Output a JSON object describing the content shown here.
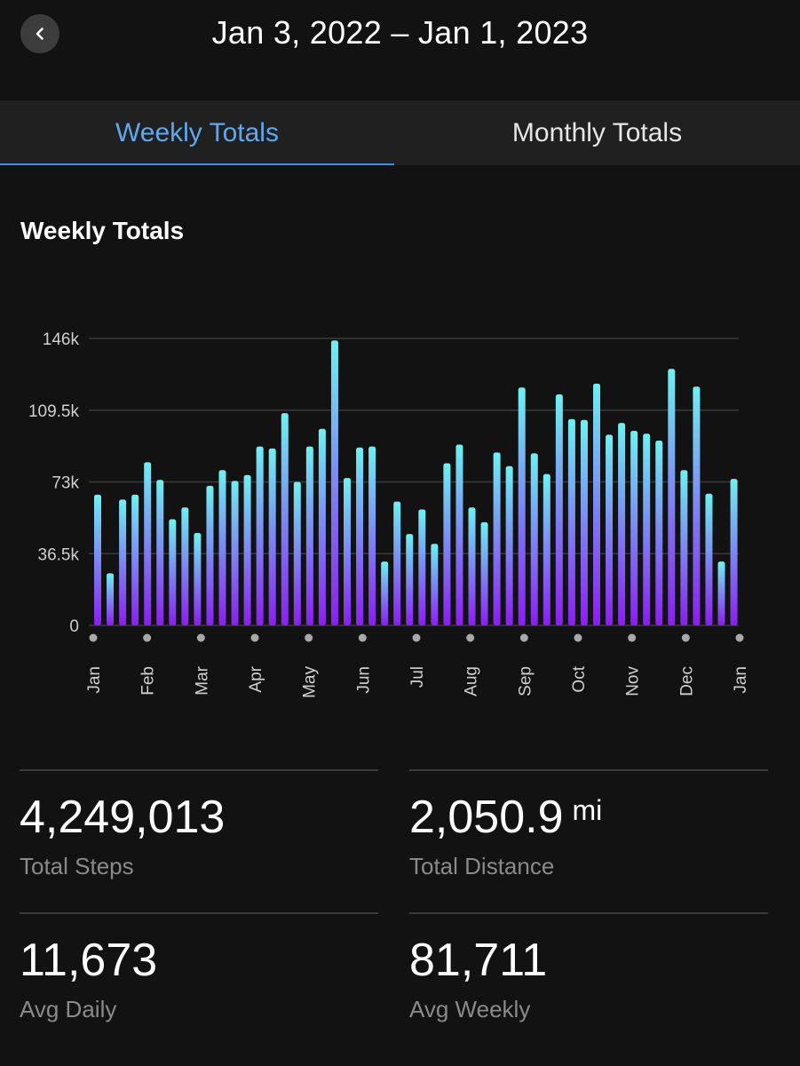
{
  "header": {
    "date_range": "Jan 3, 2022 – Jan 1, 2023"
  },
  "tabs": {
    "weekly": "Weekly Totals",
    "monthly": "Monthly Totals",
    "selected": "weekly"
  },
  "section": {
    "title": "Weekly Totals"
  },
  "colors": {
    "accent": "#5ea8f2",
    "bar_top": "#6ff0f2",
    "bar_bottom": "#8a1ef0"
  },
  "chart_data": {
    "type": "bar",
    "y_ticks": [
      "146k",
      "109.5k",
      "73k",
      "36.5k",
      "0"
    ],
    "y_tick_values": [
      146000,
      109500,
      73000,
      36500,
      0
    ],
    "ylim": [
      0,
      146000
    ],
    "x_labels": [
      "Jan",
      "Feb",
      "Mar",
      "Apr",
      "May",
      "Jun",
      "Jul",
      "Aug",
      "Sep",
      "Oct",
      "Nov",
      "Dec",
      "Jan"
    ],
    "values": [
      66500,
      26500,
      64000,
      66500,
      83000,
      74000,
      54000,
      60000,
      47000,
      71000,
      79000,
      73500,
      76500,
      91000,
      90000,
      108000,
      73000,
      91000,
      100000,
      145000,
      75000,
      90500,
      91000,
      32500,
      63000,
      46500,
      59000,
      41500,
      82500,
      92000,
      60000,
      52500,
      88000,
      81000,
      121000,
      87500,
      77000,
      117500,
      105000,
      104500,
      123000,
      97000,
      103000,
      99000,
      97500,
      94000,
      130500,
      79000,
      121500,
      67000,
      32500,
      74500
    ]
  },
  "stats": {
    "total_steps": {
      "value": "4,249,013",
      "label": "Total Steps"
    },
    "total_distance": {
      "value": "2,050.9",
      "unit": "mi",
      "label": "Total Distance"
    },
    "avg_daily": {
      "value": "11,673",
      "label": "Avg Daily"
    },
    "avg_weekly": {
      "value": "81,711",
      "label": "Avg Weekly"
    }
  }
}
